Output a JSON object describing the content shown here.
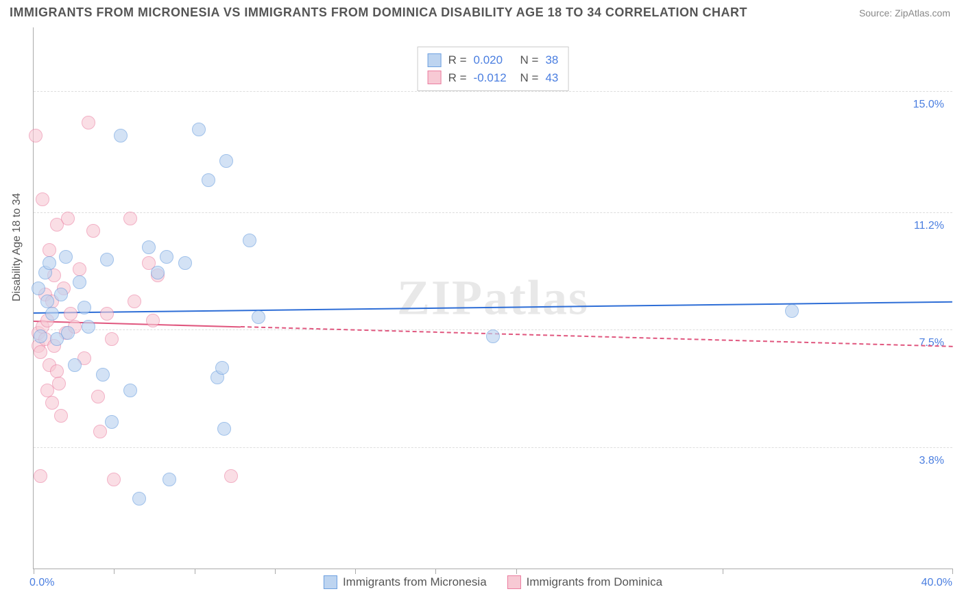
{
  "title": "IMMIGRANTS FROM MICRONESIA VS IMMIGRANTS FROM DOMINICA DISABILITY AGE 18 TO 34 CORRELATION CHART",
  "source": "Source: ZipAtlas.com",
  "watermark": "ZIPatlas",
  "chart": {
    "type": "scatter",
    "ylabel": "Disability Age 18 to 34",
    "xlim": [
      0,
      40
    ],
    "ylim": [
      0,
      17
    ],
    "y_ticks": [
      3.8,
      7.5,
      11.2,
      15.0
    ],
    "y_tick_labels": [
      "3.8%",
      "7.5%",
      "11.2%",
      "15.0%"
    ],
    "x_tick_positions": [
      0,
      3.5,
      7,
      10.5,
      14,
      17.5,
      21,
      30,
      40
    ],
    "x_axis_labels": {
      "start": "0.0%",
      "end": "40.0%"
    },
    "point_radius": 9,
    "point_stroke_width": 1.2,
    "background_color": "#ffffff",
    "grid_color": "#dddddd",
    "axis_color": "#aaaaaa",
    "label_color": "#555555",
    "tick_label_color": "#4a7ee0",
    "title_fontsize": 18,
    "label_fontsize": 16
  },
  "series": [
    {
      "name": "Immigrants from Micronesia",
      "fill": "#bdd4f0",
      "stroke": "#6da0e0",
      "fill_opacity": 0.65,
      "R": "0.020",
      "N": "38",
      "trend": {
        "y_start": 8.05,
        "y_end": 8.4,
        "solid_until_x": 40,
        "color": "#2d6dd6",
        "width": 2
      },
      "points": [
        [
          0.2,
          8.8
        ],
        [
          0.3,
          7.3
        ],
        [
          0.5,
          9.3
        ],
        [
          0.6,
          8.4
        ],
        [
          0.7,
          9.6
        ],
        [
          0.8,
          8.0
        ],
        [
          1.0,
          7.2
        ],
        [
          1.2,
          8.6
        ],
        [
          1.4,
          9.8
        ],
        [
          1.5,
          7.4
        ],
        [
          1.8,
          6.4
        ],
        [
          2.0,
          9.0
        ],
        [
          2.2,
          8.2
        ],
        [
          2.4,
          7.6
        ],
        [
          3.0,
          6.1
        ],
        [
          3.2,
          9.7
        ],
        [
          3.4,
          4.6
        ],
        [
          3.8,
          13.6
        ],
        [
          4.2,
          5.6
        ],
        [
          4.6,
          2.2
        ],
        [
          5.0,
          10.1
        ],
        [
          5.4,
          9.3
        ],
        [
          5.8,
          9.8
        ],
        [
          5.9,
          2.8
        ],
        [
          6.6,
          9.6
        ],
        [
          7.2,
          13.8
        ],
        [
          7.6,
          12.2
        ],
        [
          8.0,
          6.0
        ],
        [
          8.2,
          6.3
        ],
        [
          8.3,
          4.4
        ],
        [
          8.4,
          12.8
        ],
        [
          9.4,
          10.3
        ],
        [
          9.8,
          7.9
        ],
        [
          20.0,
          7.3
        ],
        [
          33.0,
          8.1
        ]
      ]
    },
    {
      "name": "Immigrants from Dominica",
      "fill": "#f7c9d4",
      "stroke": "#eb7da0",
      "fill_opacity": 0.6,
      "R": "-0.012",
      "N": "43",
      "trend": {
        "y_start": 7.8,
        "y_end": 7.0,
        "solid_until_x": 9,
        "color": "#e0567e",
        "width": 2
      },
      "points": [
        [
          0.1,
          13.6
        ],
        [
          0.2,
          7.0
        ],
        [
          0.2,
          7.4
        ],
        [
          0.3,
          2.9
        ],
        [
          0.3,
          6.8
        ],
        [
          0.4,
          11.6
        ],
        [
          0.4,
          7.6
        ],
        [
          0.5,
          7.2
        ],
        [
          0.5,
          8.6
        ],
        [
          0.6,
          5.6
        ],
        [
          0.6,
          7.8
        ],
        [
          0.7,
          6.4
        ],
        [
          0.7,
          10.0
        ],
        [
          0.8,
          5.2
        ],
        [
          0.8,
          8.4
        ],
        [
          0.9,
          7.0
        ],
        [
          0.9,
          9.2
        ],
        [
          1.0,
          10.8
        ],
        [
          1.0,
          6.2
        ],
        [
          1.1,
          5.8
        ],
        [
          1.2,
          4.8
        ],
        [
          1.3,
          8.8
        ],
        [
          1.4,
          7.4
        ],
        [
          1.5,
          11.0
        ],
        [
          1.6,
          8.0
        ],
        [
          1.8,
          7.6
        ],
        [
          2.0,
          9.4
        ],
        [
          2.2,
          6.6
        ],
        [
          2.4,
          14.0
        ],
        [
          2.6,
          10.6
        ],
        [
          2.8,
          5.4
        ],
        [
          2.9,
          4.3
        ],
        [
          3.2,
          8.0
        ],
        [
          3.4,
          7.2
        ],
        [
          3.5,
          2.8
        ],
        [
          4.2,
          11.0
        ],
        [
          4.4,
          8.4
        ],
        [
          5.0,
          9.6
        ],
        [
          5.2,
          7.8
        ],
        [
          5.4,
          9.2
        ],
        [
          8.6,
          2.9
        ]
      ]
    }
  ],
  "stats_labels": {
    "R": "R =",
    "N": "N ="
  },
  "legend_swatch_border_width": 1
}
